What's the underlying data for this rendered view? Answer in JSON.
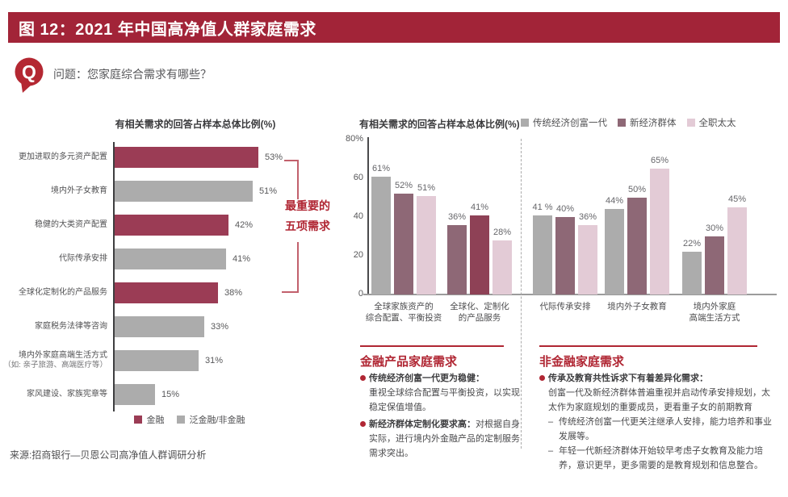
{
  "header": {
    "title": "图 12：2021 年中国高净值人群家庭需求"
  },
  "question": {
    "icon": "q-speech-bubble-icon",
    "icon_letter": "Q",
    "text": "问题：您家庭综合需求有哪些？"
  },
  "colors": {
    "header_bar": "#A22438",
    "q_icon": "#B42832",
    "accent_red": "#B02633",
    "bar_red": "#9B3C55",
    "bar_gray": "#ACACAC",
    "bar_mauve": "#8E6876",
    "bar_red_highlight": "#8E4156",
    "bar_pink": "#E3CBD6",
    "bracket_line": "#C2606C"
  },
  "chart_data": [
    {
      "type": "bar",
      "orientation": "horizontal",
      "title": "有相关需求的回答占样本总体比例(%)",
      "unit": "%",
      "xlim": [
        0,
        60
      ],
      "grid": false,
      "bars": [
        {
          "label": "更加进取的多元资产配置",
          "value": 53,
          "value_label": "53%",
          "series": "金融"
        },
        {
          "label": "境内外子女教育",
          "value": 51,
          "value_label": "51%",
          "series": "泛金融/非金融"
        },
        {
          "label": "稳健的大类资产配置",
          "value": 42,
          "value_label": "42%",
          "series": "金融"
        },
        {
          "label": "代际传承安排",
          "value": 41,
          "value_label": "41%",
          "series": "泛金融/非金融"
        },
        {
          "label": "全球化定制化的产品服务",
          "value": 38,
          "value_label": "38%",
          "series": "金融"
        },
        {
          "label": "家庭税务法律等咨询",
          "value": 33,
          "value_label": "33%",
          "series": "泛金融/非金融"
        },
        {
          "label": "境内外家庭高端生活方式",
          "note": "（如: 亲子旅游、高端医疗等）",
          "value": 31,
          "value_label": "31%",
          "series": "泛金融/非金融"
        },
        {
          "label": "家风建设、家族宪章等",
          "value": 15,
          "value_label": "15%",
          "series": "泛金融/非金融"
        }
      ],
      "legend": [
        {
          "label": "金融",
          "color": "#9B3C55"
        },
        {
          "label": "泛金融/非金融",
          "color": "#ACACAC"
        }
      ],
      "annotation": {
        "lines": [
          "最重要的",
          "五项需求"
        ],
        "applies_to": "top-5-bars"
      }
    },
    {
      "type": "bar",
      "orientation": "vertical",
      "title": "有相关需求的回答占样本总体比例(%)",
      "unit": "%",
      "ylim": [
        0,
        80
      ],
      "y_ticks": [
        "80%",
        "60",
        "40",
        "20",
        "0"
      ],
      "grid": false,
      "legend_position": "top-right",
      "legend": [
        {
          "label": "传统经济创富一代",
          "color": "#ACACAC"
        },
        {
          "label": "新经济群体",
          "color": "#8E6876"
        },
        {
          "label": "全职太太",
          "color": "#E3CBD6"
        }
      ],
      "divider_after_group": 2,
      "groups": [
        {
          "label_lines": [
            "全球家族资产的",
            "综合配置、平衡投资"
          ],
          "bars": [
            {
              "series": "传统经济创富一代",
              "value": 61,
              "label": "61%",
              "color": "#ACACAC"
            },
            {
              "series": "新经济群体",
              "value": 52,
              "label": "52%",
              "color": "#8E6876"
            },
            {
              "series": "全职太太",
              "value": 51,
              "label": "51%",
              "color": "#E3CBD6"
            }
          ]
        },
        {
          "label_lines": [
            "全球化、定制化",
            "的产品服务"
          ],
          "bars": [
            {
              "series": "传统经济创富一代",
              "value": 36,
              "label": "36%",
              "color": "#8E6876"
            },
            {
              "series": "新经济群体",
              "value": 41,
              "label": "41%",
              "color": "#8E4156"
            },
            {
              "series": "全职太太",
              "value": 28,
              "label": "28%",
              "color": "#E3CBD6"
            }
          ]
        },
        {
          "label_lines": [
            "代际传承安排"
          ],
          "bars": [
            {
              "series": "传统经济创富一代",
              "value": 41,
              "label": "41 %",
              "color": "#ACACAC"
            },
            {
              "series": "新经济群体",
              "value": 40,
              "label": "40%",
              "color": "#8E6876"
            },
            {
              "series": "全职太太",
              "value": 36,
              "label": "36%",
              "color": "#E3CBD6"
            }
          ]
        },
        {
          "label_lines": [
            "境内外子女教育"
          ],
          "bars": [
            {
              "series": "传统经济创富一代",
              "value": 44,
              "label": "44%",
              "color": "#ACACAC"
            },
            {
              "series": "新经济群体",
              "value": 50,
              "label": "50%",
              "color": "#8E6876"
            },
            {
              "series": "全职太太",
              "value": 65,
              "label": "65%",
              "color": "#E3CBD6"
            }
          ]
        },
        {
          "label_lines": [
            "境内外家庭",
            "高端生活方式"
          ],
          "bars": [
            {
              "series": "传统经济创富一代",
              "value": 22,
              "label": "22%",
              "color": "#ACACAC"
            },
            {
              "series": "新经济群体",
              "value": 30,
              "label": "30%",
              "color": "#8E6876"
            },
            {
              "series": "全职太太",
              "value": 45,
              "label": "45%",
              "color": "#E3CBD6"
            }
          ]
        }
      ]
    }
  ],
  "sections": {
    "finance": {
      "heading": "金融产品家庭需求",
      "bullets": [
        {
          "lead": "传统经济创富一代更为稳健：",
          "body": "重视全球综合配置与平衡投资，以实现稳定保值增值。"
        },
        {
          "lead": "新经济群体定制化要求高：",
          "body": "对根据自身实际，进行境内外金融产品的定制服务需求突出。"
        }
      ]
    },
    "nonfinance": {
      "heading": "非金融家庭需求",
      "bullets": [
        {
          "lead": "传承及教育共性诉求下有着差异化需求：",
          "body": "创富一代及新经济群体普遍重视并启动传承安排规划，太太作为家庭规划的重要成员，更看重子女的前期教育",
          "subs": [
            "传统经济创富一代更关注继承人安排，能力培养和事业发展等。",
            "年轻一代新经济群体开始较早考虑子女教育及能力培养，意识更早，更多需要的是教育规划和信息整合。"
          ]
        }
      ]
    }
  },
  "source": "来源:招商银行—贝恩公司高净值人群调研分析"
}
